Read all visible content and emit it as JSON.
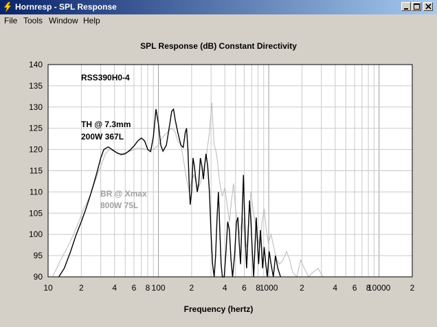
{
  "window": {
    "title": "Hornresp - SPL Response"
  },
  "menu": [
    "File",
    "Tools",
    "Window",
    "Help"
  ],
  "chart_data": {
    "type": "line",
    "title": "SPL Response (dB)   Constant Directivity",
    "xlabel": "Frequency (hertz)",
    "ylabel": "",
    "xscale": "log",
    "xlim": [
      10,
      20000
    ],
    "ylim": [
      90,
      140
    ],
    "yticks": [
      90,
      95,
      100,
      105,
      110,
      115,
      120,
      125,
      130,
      135,
      140
    ],
    "xticks": [
      {
        "v": 10,
        "label": "10"
      },
      {
        "v": 20,
        "label": "2"
      },
      {
        "v": 40,
        "label": "4"
      },
      {
        "v": 60,
        "label": "6"
      },
      {
        "v": 80,
        "label": "8"
      },
      {
        "v": 100,
        "label": "100"
      },
      {
        "v": 200,
        "label": "2"
      },
      {
        "v": 400,
        "label": "4"
      },
      {
        "v": 600,
        "label": "6"
      },
      {
        "v": 800,
        "label": "8"
      },
      {
        "v": 1000,
        "label": "1000"
      },
      {
        "v": 2000,
        "label": "2"
      },
      {
        "v": 4000,
        "label": "4"
      },
      {
        "v": 6000,
        "label": "6"
      },
      {
        "v": 8000,
        "label": "8"
      },
      {
        "v": 10000,
        "label": "10000"
      },
      {
        "v": 20000,
        "label": "2"
      }
    ],
    "grid": true,
    "annotations": [
      {
        "text": "RSS390H0-4",
        "color": "#000000"
      },
      {
        "text": "TH @ 7.3mm",
        "color": "#000000"
      },
      {
        "text": "200W   367L",
        "color": "#000000"
      },
      {
        "text": "BR @ Xmax",
        "color": "#a0a0a0"
      },
      {
        "text": "800W  75L",
        "color": "#a0a0a0"
      }
    ],
    "series": [
      {
        "color": "#000000",
        "points": [
          [
            12.5,
            90
          ],
          [
            14,
            92
          ],
          [
            16,
            96
          ],
          [
            18,
            100
          ],
          [
            20,
            103
          ],
          [
            22,
            106
          ],
          [
            24,
            109
          ],
          [
            26,
            112
          ],
          [
            28,
            115
          ],
          [
            30,
            118
          ],
          [
            32,
            120
          ],
          [
            35,
            120.6
          ],
          [
            38,
            120
          ],
          [
            42,
            119.2
          ],
          [
            46,
            118.8
          ],
          [
            50,
            119
          ],
          [
            55,
            119.8
          ],
          [
            60,
            120.8
          ],
          [
            65,
            122
          ],
          [
            70,
            122.7
          ],
          [
            75,
            122
          ],
          [
            80,
            120
          ],
          [
            85,
            119.5
          ],
          [
            90,
            123
          ],
          [
            95,
            129.5
          ],
          [
            100,
            126
          ],
          [
            105,
            121
          ],
          [
            110,
            119.6
          ],
          [
            118,
            121
          ],
          [
            125,
            125
          ],
          [
            132,
            129
          ],
          [
            137,
            129.5
          ],
          [
            142,
            127
          ],
          [
            150,
            124
          ],
          [
            160,
            121
          ],
          [
            168,
            120.5
          ],
          [
            175,
            124
          ],
          [
            180,
            125
          ],
          [
            185,
            120
          ],
          [
            190,
            112
          ],
          [
            194,
            107
          ],
          [
            200,
            110
          ],
          [
            206,
            118
          ],
          [
            212,
            116
          ],
          [
            218,
            113
          ],
          [
            225,
            110
          ],
          [
            232,
            112
          ],
          [
            240,
            118
          ],
          [
            248,
            116
          ],
          [
            256,
            113
          ],
          [
            262,
            116
          ],
          [
            270,
            119
          ],
          [
            280,
            116
          ],
          [
            290,
            110
          ],
          [
            300,
            100
          ],
          [
            310,
            93
          ],
          [
            320,
            90
          ],
          [
            330,
            95
          ],
          [
            340,
            104
          ],
          [
            350,
            110
          ],
          [
            360,
            101
          ],
          [
            370,
            93
          ],
          [
            380,
            90
          ],
          [
            395,
            90
          ],
          [
            410,
            96
          ],
          [
            425,
            103
          ],
          [
            440,
            101
          ],
          [
            455,
            94
          ],
          [
            470,
            90
          ],
          [
            490,
            95
          ],
          [
            510,
            103
          ],
          [
            525,
            104
          ],
          [
            540,
            98
          ],
          [
            555,
            93
          ],
          [
            575,
            105
          ],
          [
            590,
            114
          ],
          [
            600,
            107
          ],
          [
            615,
            98
          ],
          [
            630,
            92
          ],
          [
            650,
            100
          ],
          [
            670,
            108
          ],
          [
            690,
            103
          ],
          [
            710,
            96
          ],
          [
            730,
            90
          ],
          [
            750,
            97
          ],
          [
            770,
            104
          ],
          [
            790,
            98
          ],
          [
            810,
            93
          ],
          [
            840,
            101
          ],
          [
            860,
            97
          ],
          [
            880,
            92
          ],
          [
            910,
            97
          ],
          [
            940,
            93
          ],
          [
            970,
            90
          ],
          [
            1010,
            96
          ],
          [
            1050,
            93
          ],
          [
            1100,
            90
          ],
          [
            1150,
            95
          ],
          [
            1210,
            92
          ],
          [
            1280,
            90
          ]
        ]
      },
      {
        "color": "#b8b8b8",
        "points": [
          [
            11,
            90
          ],
          [
            13,
            94
          ],
          [
            15,
            97
          ],
          [
            17,
            100
          ],
          [
            19,
            103
          ],
          [
            21,
            106
          ],
          [
            24,
            109
          ],
          [
            27,
            113
          ],
          [
            30,
            116
          ],
          [
            33,
            119
          ],
          [
            36,
            120
          ],
          [
            40,
            119.5
          ],
          [
            45,
            119
          ],
          [
            50,
            119.2
          ],
          [
            55,
            119.6
          ],
          [
            60,
            120
          ],
          [
            65,
            120.4
          ],
          [
            70,
            120.2
          ],
          [
            80,
            120
          ],
          [
            90,
            120
          ],
          [
            100,
            121
          ],
          [
            110,
            123
          ],
          [
            120,
            124
          ],
          [
            130,
            125
          ],
          [
            140,
            124.5
          ],
          [
            150,
            122
          ],
          [
            160,
            121
          ],
          [
            170,
            117
          ],
          [
            180,
            113
          ],
          [
            190,
            110
          ],
          [
            200,
            113
          ],
          [
            210,
            114
          ],
          [
            220,
            112
          ],
          [
            230,
            111
          ],
          [
            240,
            112
          ],
          [
            250,
            114
          ],
          [
            260,
            116
          ],
          [
            270,
            118
          ],
          [
            280,
            121
          ],
          [
            290,
            124
          ],
          [
            300,
            129
          ],
          [
            305,
            131
          ],
          [
            312,
            126
          ],
          [
            320,
            121
          ],
          [
            330,
            120
          ],
          [
            340,
            118
          ],
          [
            360,
            112
          ],
          [
            380,
            109
          ],
          [
            400,
            111
          ],
          [
            420,
            107
          ],
          [
            440,
            103
          ],
          [
            460,
            108
          ],
          [
            480,
            112
          ],
          [
            500,
            106
          ],
          [
            520,
            103
          ],
          [
            540,
            100
          ],
          [
            560,
            102
          ],
          [
            580,
            104
          ],
          [
            600,
            100
          ],
          [
            630,
            97
          ],
          [
            660,
            104
          ],
          [
            690,
            110
          ],
          [
            720,
            106
          ],
          [
            750,
            103
          ],
          [
            790,
            100
          ],
          [
            830,
            97
          ],
          [
            870,
            103
          ],
          [
            910,
            106
          ],
          [
            950,
            101
          ],
          [
            990,
            98
          ],
          [
            1050,
            100
          ],
          [
            1110,
            97
          ],
          [
            1180,
            94
          ],
          [
            1250,
            93
          ],
          [
            1350,
            94
          ],
          [
            1450,
            96
          ],
          [
            1550,
            94
          ],
          [
            1650,
            91
          ],
          [
            1800,
            90
          ],
          [
            1950,
            94
          ],
          [
            2100,
            92
          ],
          [
            2300,
            90
          ],
          [
            2500,
            91
          ],
          [
            2800,
            92
          ],
          [
            3100,
            90
          ],
          [
            3500,
            90
          ]
        ]
      }
    ]
  }
}
